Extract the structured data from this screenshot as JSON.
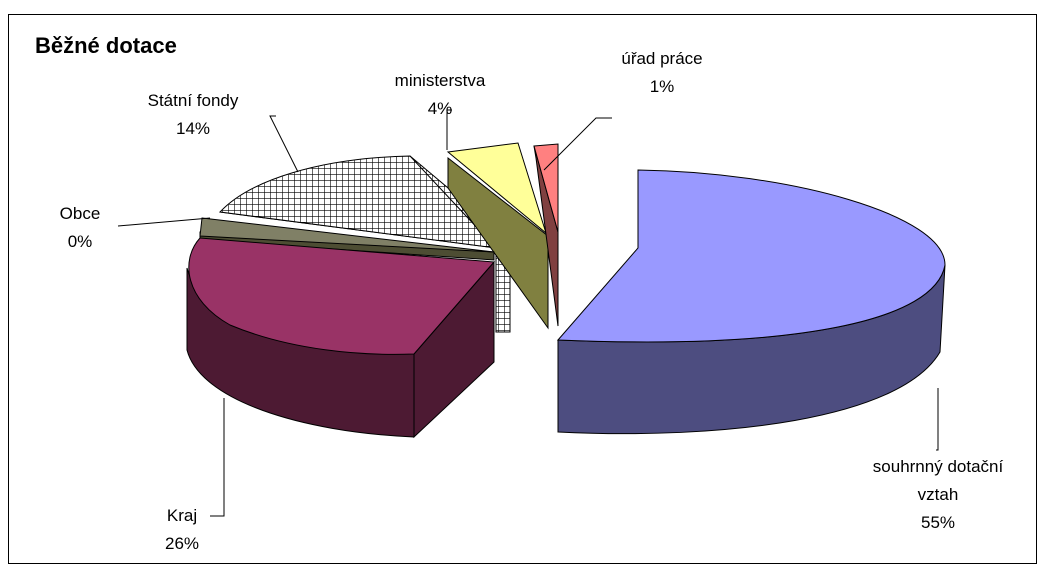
{
  "chart_data": {
    "type": "pie",
    "style": "3d-exploded",
    "title": "Běžné dotace",
    "slices": [
      {
        "name": "souhrnný dotační vztah",
        "label_lines": [
          "souhrnný dotační",
          "vztah"
        ],
        "percent_label": "55%",
        "value": 55,
        "color": "#9999FF",
        "side_color": "#4D4D80",
        "pattern": "solid"
      },
      {
        "name": "Kraj",
        "label_lines": [
          "Kraj"
        ],
        "percent_label": "26%",
        "value": 26,
        "color": "#993366",
        "side_color": "#4D1A33",
        "pattern": "solid"
      },
      {
        "name": "Obce",
        "label_lines": [
          "Obce"
        ],
        "percent_label": "0%",
        "value": 0,
        "color": "#808066",
        "side_color": "#4D4D33",
        "pattern": "solid"
      },
      {
        "name": "Státní fondy",
        "label_lines": [
          "Státní fondy"
        ],
        "percent_label": "14%",
        "value": 14,
        "color": "#FFFFFF",
        "side_color": "#FFFFFF",
        "pattern": "grid"
      },
      {
        "name": "ministerstva",
        "label_lines": [
          "ministerstva"
        ],
        "percent_label": "4%",
        "value": 4,
        "color": "#FFFF99",
        "side_color": "#808040",
        "pattern": "solid"
      },
      {
        "name": "úřad práce",
        "label_lines": [
          "úřad práce"
        ],
        "percent_label": "1%",
        "value": 1,
        "color": "#FF8080",
        "side_color": "#804040",
        "pattern": "solid"
      }
    ],
    "legend": "none",
    "data_labels": "outside-with-leader-lines"
  }
}
